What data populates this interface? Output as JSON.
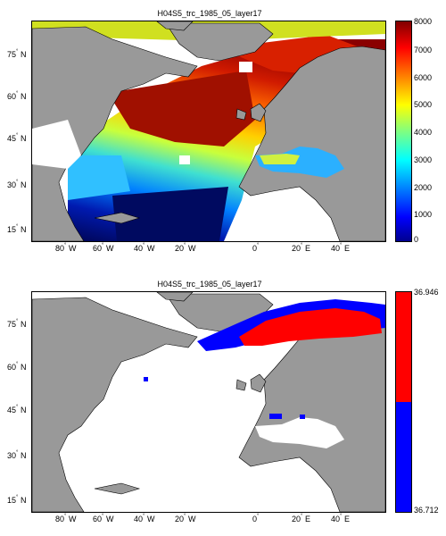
{
  "maps": [
    {
      "title": "H04S5_trc_1985_05_layer17",
      "colorbar": {
        "type": "continuous",
        "ticks": [
          "8000",
          "7000",
          "6000",
          "5000",
          "4000",
          "3000",
          "2000",
          "1000",
          "0"
        ],
        "range": [
          0,
          8000
        ],
        "colormap": "jet"
      }
    },
    {
      "title": "H04S5_trc_1985_05_layer17",
      "colorbar": {
        "type": "two-class",
        "top_label": "36.946",
        "bottom_label": "36.712",
        "colors": [
          "#ff0000",
          "#0000ff"
        ]
      }
    }
  ],
  "lat_labels": [
    "75",
    "60",
    "45",
    "30",
    "15"
  ],
  "lat_hemi": "N",
  "lon_labels": [
    {
      "deg": "80",
      "hemi": "W"
    },
    {
      "deg": "60",
      "hemi": "W"
    },
    {
      "deg": "40",
      "hemi": "W"
    },
    {
      "deg": "20",
      "hemi": "W"
    },
    {
      "deg": "0",
      "hemi": ""
    },
    {
      "deg": "20",
      "hemi": "E"
    },
    {
      "deg": "40",
      "hemi": "E"
    }
  ],
  "land_color": "#999999",
  "ocean_color": "#ffffff"
}
